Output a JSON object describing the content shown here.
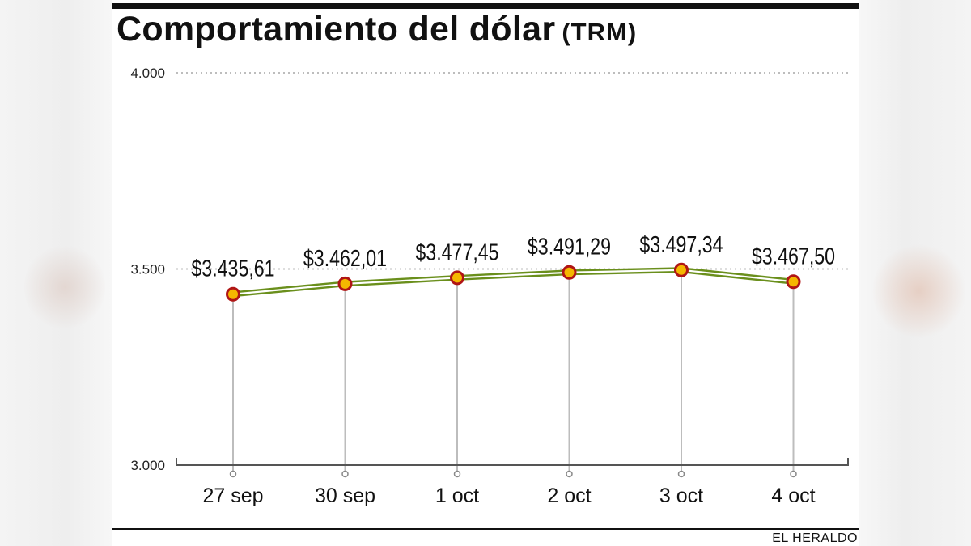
{
  "title": "Comportamiento del dólar",
  "title_suffix": "(TRM)",
  "credit": "EL HERALDO",
  "colors": {
    "line": "#6a8f1c",
    "line_inner": "#ffffff",
    "marker_fill": "#f5b700",
    "marker_stroke": "#b01515",
    "grid": "#bdbdbd",
    "axis": "#555555"
  },
  "chart_data": {
    "type": "line",
    "title": "Comportamiento del dólar (TRM)",
    "xlabel": "",
    "ylabel": "",
    "categories": [
      "27 sep",
      "30 sep",
      "1 oct",
      "2 oct",
      "3 oct",
      "4 oct"
    ],
    "values": [
      3435.61,
      3462.01,
      3477.45,
      3491.29,
      3497.34,
      3467.5
    ],
    "data_labels": [
      "$3.435,61",
      "$3.462,01",
      "$3.477,45",
      "$3.491,29",
      "$3.497,34",
      "$3.467,50"
    ],
    "ylim": [
      3000,
      4000
    ],
    "yticks": [
      3000,
      3500,
      4000
    ],
    "ytick_labels": [
      "3.000",
      "3.500",
      "4.000"
    ],
    "grid": "dotted horizontal at 3.500 and 4.000",
    "legend": "none"
  }
}
